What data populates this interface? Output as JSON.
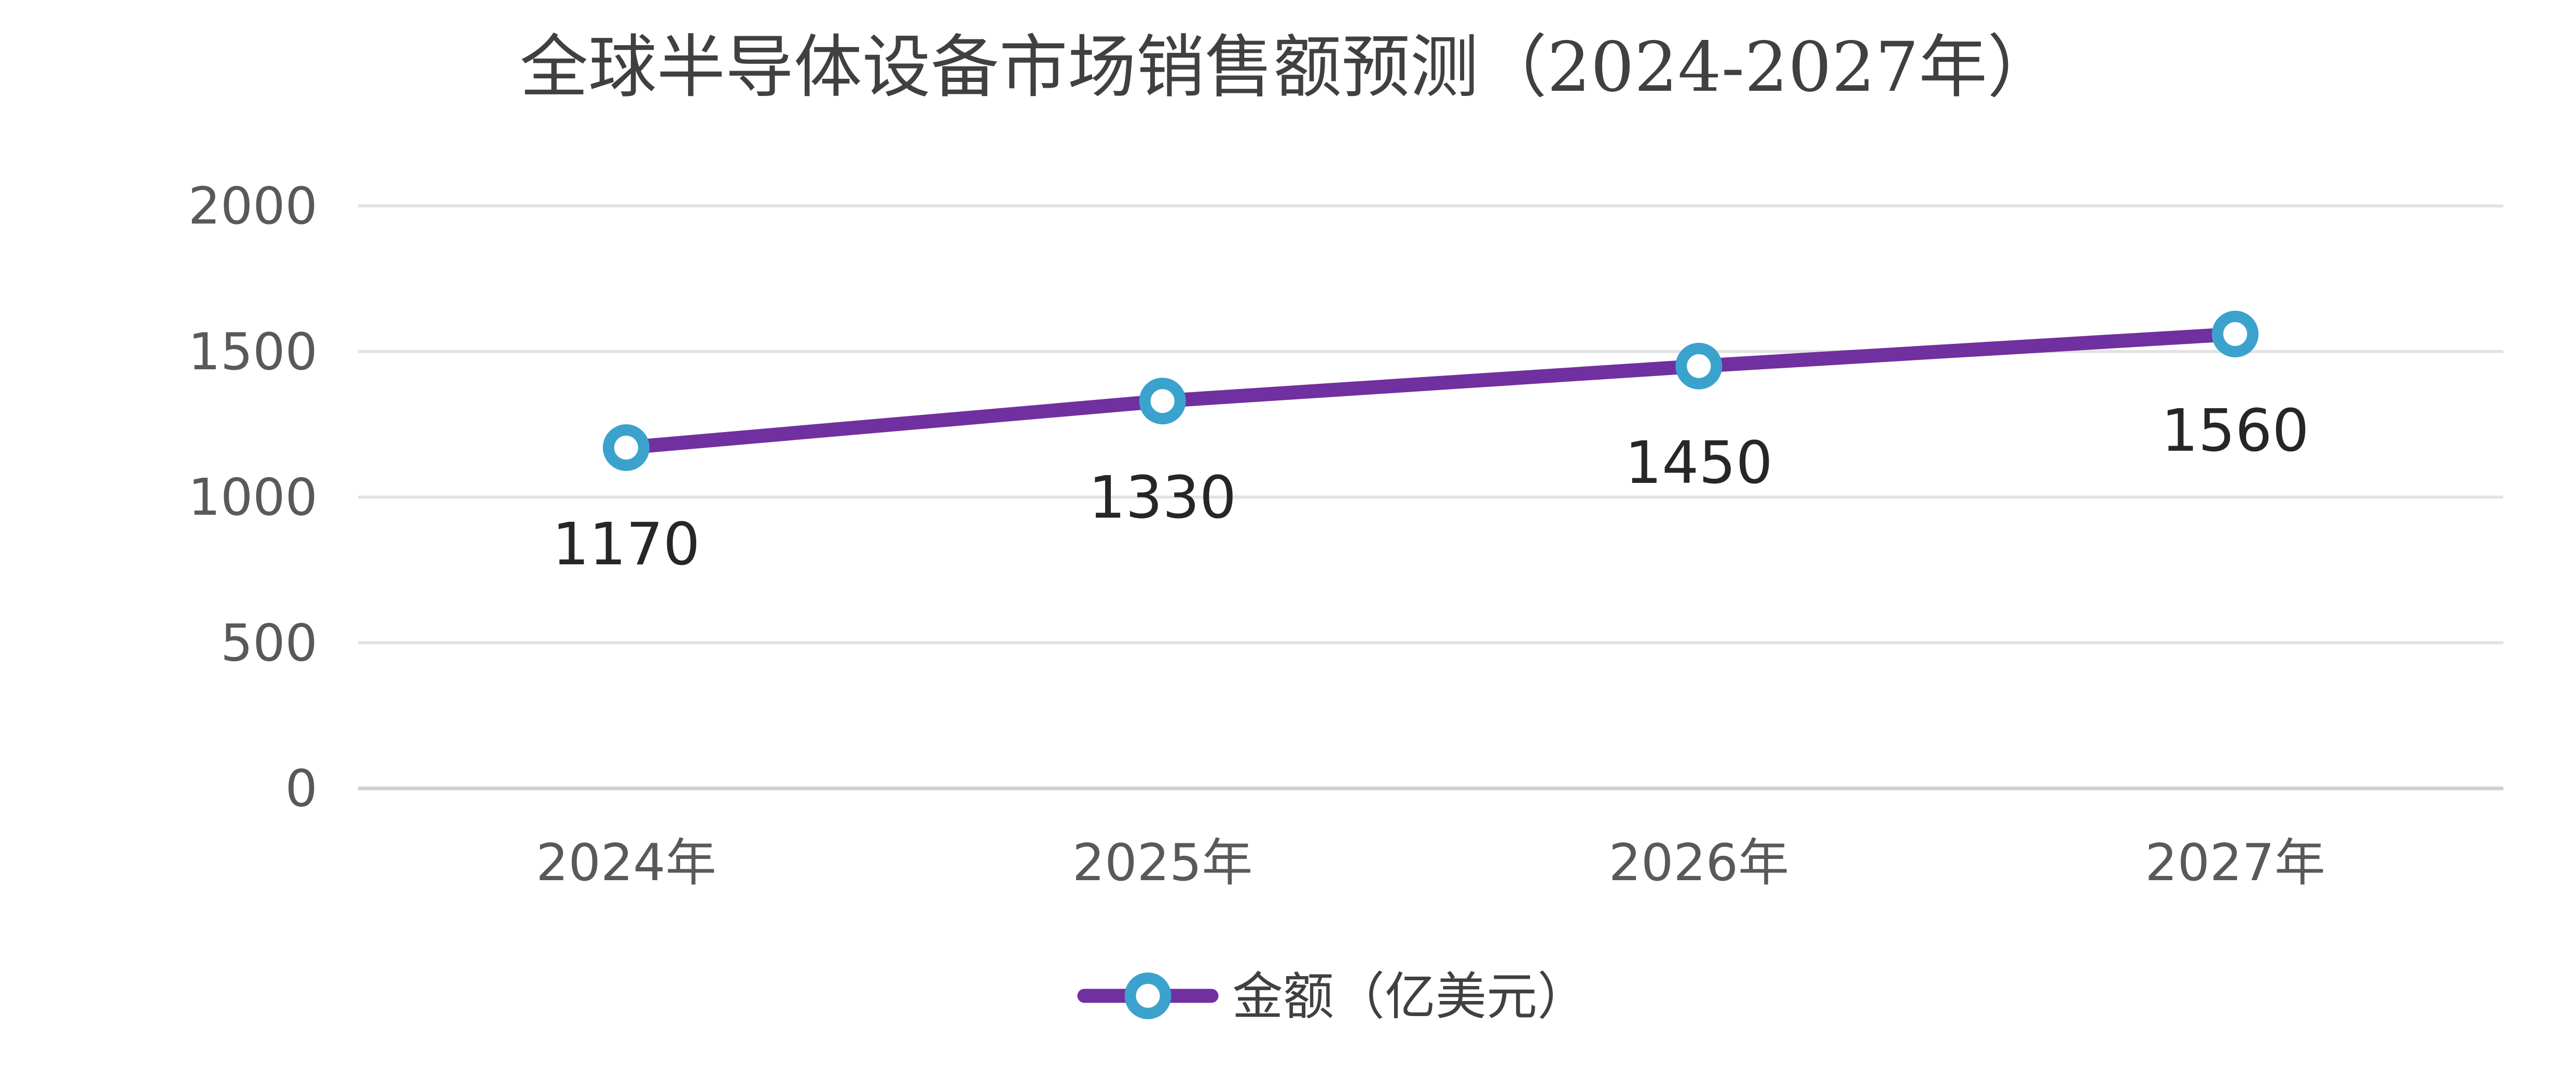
{
  "chart_data": {
    "type": "line",
    "title": "全球半导体设备市场销售额预测（2024-2027年）",
    "categories": [
      "2024年",
      "2025年",
      "2026年",
      "2027年"
    ],
    "series": [
      {
        "name": "金额（亿美元）",
        "values": [
          1170,
          1330,
          1450,
          1560
        ],
        "data_labels": [
          "1170",
          "1330",
          "1450",
          "1560"
        ]
      }
    ],
    "ylim": [
      0,
      2000
    ],
    "yticks": [
      "0",
      "500",
      "1000",
      "1500",
      "2000"
    ],
    "grid": true,
    "legend_position": "bottom",
    "colors": {
      "line": "#7030A0",
      "marker_outer": "#3BA2CE",
      "marker_inner": "#FFFFFF",
      "grid": "#E3E3E3",
      "axis": "#D0D0D0"
    }
  }
}
